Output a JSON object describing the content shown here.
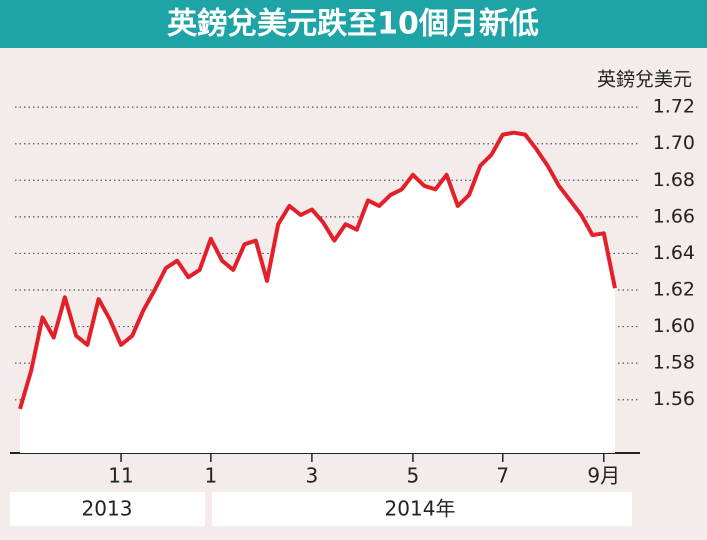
{
  "chart_data": {
    "type": "line",
    "title": "英鎊兌美元跌至10個月新低",
    "y_label": "英鎊兌美元",
    "categories": [
      null,
      null,
      null,
      null,
      null,
      null,
      null,
      null,
      null,
      "11",
      null,
      null,
      null,
      null,
      null,
      null,
      null,
      "1",
      null,
      null,
      null,
      null,
      null,
      null,
      null,
      null,
      "3",
      null,
      null,
      null,
      null,
      null,
      null,
      null,
      null,
      "5",
      null,
      null,
      null,
      null,
      null,
      null,
      null,
      "7",
      null,
      null,
      null,
      null,
      null,
      null,
      null,
      null,
      "9月",
      null
    ],
    "year_labels": [
      "2013",
      "2014年"
    ],
    "series": [
      {
        "name": "英鎊兌美元",
        "color": "#e3202a",
        "values": [
          1.555,
          1.576,
          1.605,
          1.594,
          1.616,
          1.595,
          1.59,
          1.615,
          1.604,
          1.59,
          1.595,
          1.609,
          1.62,
          1.632,
          1.636,
          1.627,
          1.631,
          1.648,
          1.636,
          1.631,
          1.645,
          1.647,
          1.625,
          1.656,
          1.666,
          1.661,
          1.664,
          1.657,
          1.647,
          1.656,
          1.653,
          1.669,
          1.666,
          1.672,
          1.675,
          1.683,
          1.677,
          1.675,
          1.683,
          1.666,
          1.672,
          1.688,
          1.694,
          1.705,
          1.706,
          1.705,
          1.697,
          1.688,
          1.677,
          1.669,
          1.661,
          1.65,
          1.651,
          1.621
        ]
      }
    ],
    "ylim": [
      1.55,
      1.725
    ],
    "yticks": [
      1.56,
      1.58,
      {
        "value": 1.6,
        "label": "1.60"
      },
      1.62,
      1.64,
      1.66,
      1.68,
      {
        "value": 1.7,
        "label": "1.70"
      },
      1.72
    ],
    "grid": true
  }
}
